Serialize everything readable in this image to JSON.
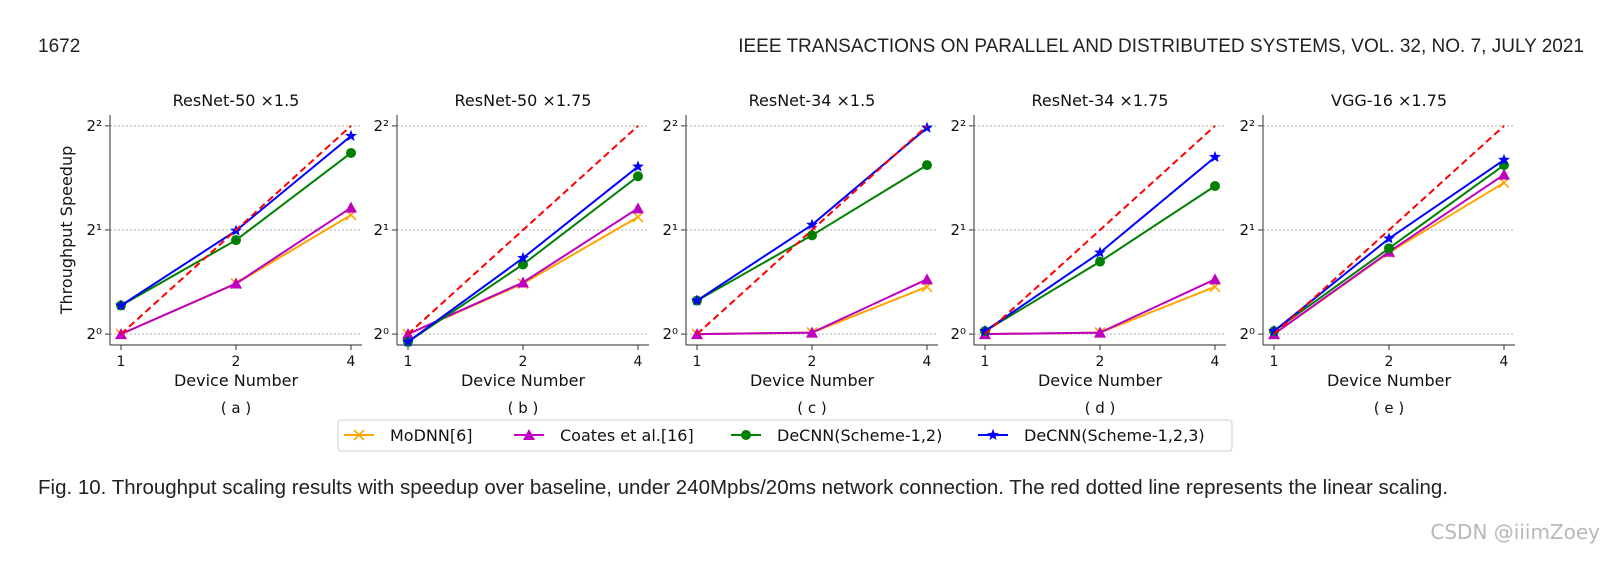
{
  "header": {
    "page_number": "1672",
    "journal": "IEEE TRANSACTIONS ON PARALLEL AND DISTRIBUTED SYSTEMS, VOL. 32, NO. 7, JULY 2021"
  },
  "caption": "Fig. 10. Throughput scaling results with speedup over baseline, under 240Mpbs/20ms network connection. The red dotted line represents the linear scaling.",
  "watermark": "CSDN @iiimZoey",
  "legend": {
    "placement": "bottom-center",
    "entries": [
      {
        "name": "MoDNN[6]",
        "color": "#ffa500",
        "marker": "x"
      },
      {
        "name": "Coates et al.[16]",
        "color": "#bf00bf",
        "marker": "triangle"
      },
      {
        "name": "DeCNN(Scheme-1,2)",
        "color": "#008000",
        "marker": "circle"
      },
      {
        "name": "DeCNN(Scheme-1,2,3)",
        "color": "#0000ff",
        "marker": "star"
      }
    ]
  },
  "linear_color": "#ff0000",
  "chart_data": [
    {
      "type": "line",
      "title": "ResNet-50 ×1.5",
      "sublabel": "( a )",
      "xlabel": "Device Number",
      "ylabel": "Throughput Speedup",
      "x": [
        1,
        2,
        4
      ],
      "xticks": [
        "1",
        "2",
        "4"
      ],
      "yscale": "log2",
      "ylim": [
        0.93,
        4.3
      ],
      "yticks": [
        1,
        2,
        4
      ],
      "ytick_labels": [
        "2⁰",
        "2¹",
        "2²"
      ],
      "grid": "horizontal-dotted",
      "linear": [
        1,
        2,
        4
      ],
      "series": [
        {
          "name": "MoDNN[6]",
          "values": [
            1.0,
            1.4,
            2.21
          ]
        },
        {
          "name": "Coates et al.[16]",
          "values": [
            1.0,
            1.4,
            2.32
          ]
        },
        {
          "name": "DeCNN(Scheme-1,2)",
          "values": [
            1.21,
            1.87,
            3.34
          ]
        },
        {
          "name": "DeCNN(Scheme-1,2,3)",
          "values": [
            1.21,
            1.99,
            3.74
          ]
        }
      ]
    },
    {
      "type": "line",
      "title": "ResNet-50 ×1.75",
      "sublabel": "( b )",
      "xlabel": "Device Number",
      "ylabel": "",
      "x": [
        1,
        2,
        4
      ],
      "xticks": [
        "1",
        "2",
        "4"
      ],
      "yscale": "log2",
      "ylim": [
        0.93,
        4.3
      ],
      "yticks": [
        1,
        2,
        4
      ],
      "ytick_labels": [
        "2⁰",
        "2¹",
        "2²"
      ],
      "grid": "horizontal-dotted",
      "linear": [
        1,
        2,
        4
      ],
      "series": [
        {
          "name": "MoDNN[6]",
          "values": [
            1.0,
            1.4,
            2.18
          ]
        },
        {
          "name": "Coates et al.[16]",
          "values": [
            1.0,
            1.41,
            2.31
          ]
        },
        {
          "name": "DeCNN(Scheme-1,2)",
          "values": [
            0.95,
            1.59,
            2.86
          ]
        },
        {
          "name": "DeCNN(Scheme-1,2,3)",
          "values": [
            0.95,
            1.66,
            3.05
          ]
        }
      ]
    },
    {
      "type": "line",
      "title": "ResNet-34 ×1.5",
      "sublabel": "( c )",
      "xlabel": "Device Number",
      "ylabel": "",
      "x": [
        1,
        2,
        4
      ],
      "xticks": [
        "1",
        "2",
        "4"
      ],
      "yscale": "log2",
      "ylim": [
        0.93,
        4.3
      ],
      "yticks": [
        1,
        2,
        4
      ],
      "ytick_labels": [
        "2⁰",
        "2¹",
        "2²"
      ],
      "grid": "horizontal-dotted",
      "linear": [
        1,
        2,
        4
      ],
      "series": [
        {
          "name": "MoDNN[6]",
          "values": [
            1.0,
            1.01,
            1.37
          ]
        },
        {
          "name": "Coates et al.[16]",
          "values": [
            1.0,
            1.01,
            1.44
          ]
        },
        {
          "name": "DeCNN(Scheme-1,2)",
          "values": [
            1.25,
            1.93,
            3.08
          ]
        },
        {
          "name": "DeCNN(Scheme-1,2,3)",
          "values": [
            1.25,
            2.07,
            3.95
          ]
        }
      ]
    },
    {
      "type": "line",
      "title": "ResNet-34 ×1.75",
      "sublabel": "( d )",
      "xlabel": "Device Number",
      "ylabel": "",
      "x": [
        1,
        2,
        4
      ],
      "xticks": [
        "1",
        "2",
        "4"
      ],
      "yscale": "log2",
      "ylim": [
        0.93,
        4.3
      ],
      "yticks": [
        1,
        2,
        4
      ],
      "ytick_labels": [
        "2⁰",
        "2¹",
        "2²"
      ],
      "grid": "horizontal-dotted",
      "linear": [
        1,
        2,
        4
      ],
      "series": [
        {
          "name": "MoDNN[6]",
          "values": [
            1.0,
            1.01,
            1.37
          ]
        },
        {
          "name": "Coates et al.[16]",
          "values": [
            1.0,
            1.01,
            1.44
          ]
        },
        {
          "name": "DeCNN(Scheme-1,2)",
          "values": [
            1.02,
            1.62,
            2.68
          ]
        },
        {
          "name": "DeCNN(Scheme-1,2,3)",
          "values": [
            1.02,
            1.72,
            3.25
          ]
        }
      ]
    },
    {
      "type": "line",
      "title": "VGG-16 ×1.75",
      "sublabel": "( e )",
      "xlabel": "Device Number",
      "ylabel": "",
      "x": [
        1,
        2,
        4
      ],
      "xticks": [
        "1",
        "2",
        "4"
      ],
      "yscale": "log2",
      "ylim": [
        0.93,
        4.3
      ],
      "yticks": [
        1,
        2,
        4
      ],
      "ytick_labels": [
        "2⁰",
        "2¹",
        "2²"
      ],
      "grid": "horizontal-dotted",
      "linear": [
        1,
        2,
        4
      ],
      "series": [
        {
          "name": "MoDNN[6]",
          "values": [
            1.0,
            1.72,
            2.74
          ]
        },
        {
          "name": "Coates et al.[16]",
          "values": [
            1.0,
            1.73,
            2.89
          ]
        },
        {
          "name": "DeCNN(Scheme-1,2)",
          "values": [
            1.02,
            1.77,
            3.08
          ]
        },
        {
          "name": "DeCNN(Scheme-1,2,3)",
          "values": [
            1.02,
            1.89,
            3.19
          ]
        }
      ]
    }
  ]
}
